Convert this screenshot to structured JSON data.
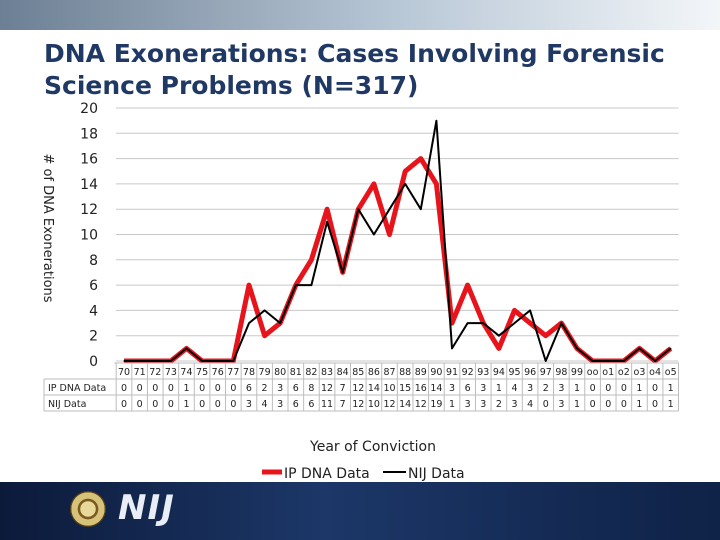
{
  "slide": {
    "title_line1": "DNA Exonerations: Cases Involving Forensic",
    "title_line2": "Science Problems (N=317)",
    "logo_text": "NIJ",
    "colors": {
      "title": "#1f3864",
      "footer": "#13284f",
      "seal": "#c9b25a"
    }
  },
  "chart_data": {
    "type": "line",
    "title": "DNA Exonerations: Cases Involving Forensic Science Problems (N=317)",
    "xlabel": "Year of Conviction",
    "ylabel": "# of DNA Exonerations",
    "ylim": [
      0,
      20
    ],
    "yticks": [
      "0",
      "2",
      "4",
      "6",
      "8",
      "10",
      "12",
      "14",
      "16",
      "18",
      "20"
    ],
    "grid": "horizontal",
    "legend_position": "bottom",
    "data_table": true,
    "categories": [
      "70",
      "71",
      "72",
      "73",
      "74",
      "75",
      "76",
      "77",
      "78",
      "79",
      "80",
      "81",
      "82",
      "83",
      "84",
      "85",
      "86",
      "87",
      "88",
      "89",
      "90",
      "91",
      "92",
      "93",
      "94",
      "95",
      "96",
      "97",
      "98",
      "99",
      "oo",
      "o1",
      "o2",
      "o3",
      "o4",
      "o5"
    ],
    "series": [
      {
        "name": "IP DNA Data",
        "color": "#e8141b",
        "values": [
          0,
          0,
          0,
          0,
          1,
          0,
          0,
          0,
          6,
          2,
          3,
          6,
          8,
          12,
          7,
          12,
          14,
          10,
          15,
          16,
          14,
          3,
          6,
          3,
          1,
          4,
          3,
          2,
          3,
          1,
          0,
          0,
          0,
          1,
          0,
          1
        ]
      },
      {
        "name": "NIJ Data",
        "color": "#000000",
        "values": [
          0,
          0,
          0,
          0,
          1,
          0,
          0,
          0,
          3,
          4,
          3,
          6,
          6,
          11,
          7,
          12,
          10,
          12,
          14,
          12,
          19,
          1,
          3,
          3,
          2,
          3,
          4,
          0,
          3,
          1,
          0,
          0,
          0,
          1,
          0,
          1
        ]
      }
    ]
  }
}
